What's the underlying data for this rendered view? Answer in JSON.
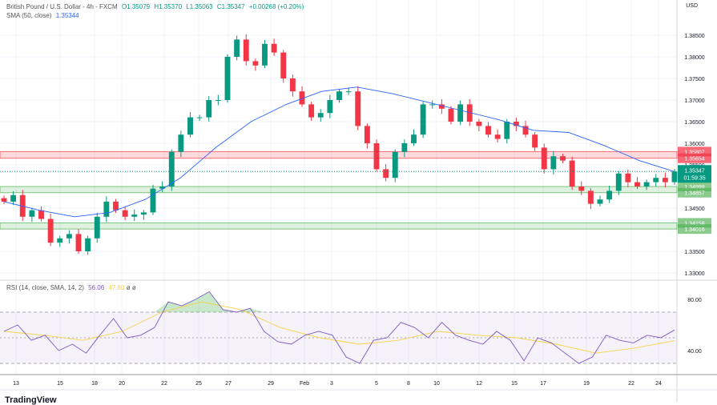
{
  "header": {
    "symbol": "British Pound / U.S. Dollar - 4h - FXCM",
    "open": "O1.35079",
    "high": "H1.35370",
    "low": "L1.35063",
    "close": "C1.35347",
    "change": "+0.00268 (+0.20%)",
    "sma_label": "SMA (50, close)",
    "sma_value": "1.35344",
    "currency": "USD"
  },
  "rsi_header": {
    "label": "RSI (14, close, SMA, 14, 2)",
    "rsi_value": "56.06",
    "sma_value": "47.80",
    "extra1": "ø",
    "extra2": "ø"
  },
  "logo": "TradingView",
  "colors": {
    "up": "#089981",
    "down": "#f23645",
    "sma": "#2962ff",
    "rsi": "#7e57c2",
    "rsi_sma": "#f7d34a"
  },
  "chart_data": [
    {
      "type": "candlestick",
      "title": "British Pound / U.S. Dollar - 4h - FXCM",
      "y_ticks": [
        "1.38500",
        "1.38000",
        "1.37500",
        "1.37000",
        "1.36500",
        "1.36000",
        "1.35500",
        "1.34500",
        "1.33500",
        "1.33000"
      ],
      "ylim": [
        1.3285,
        1.3885
      ],
      "x_ticks": [
        "13",
        "15",
        "18",
        "20",
        "22",
        "25",
        "27",
        "29",
        "Feb",
        "3",
        "5",
        "8",
        "10",
        "12",
        "15",
        "17",
        "19",
        "22",
        "24"
      ],
      "closes": [
        1.3465,
        1.348,
        1.343,
        1.3445,
        1.3425,
        1.337,
        1.338,
        1.339,
        1.335,
        1.338,
        1.343,
        1.3465,
        1.3445,
        1.343,
        1.3435,
        1.344,
        1.3495,
        1.35,
        1.358,
        1.362,
        1.366,
        1.366,
        1.37,
        1.37,
        1.38,
        1.384,
        1.379,
        1.378,
        1.383,
        1.381,
        1.375,
        1.372,
        1.369,
        1.366,
        1.367,
        1.37,
        1.372,
        1.372,
        1.364,
        1.36,
        1.354,
        1.352,
        1.358,
        1.36,
        1.362,
        1.369,
        1.369,
        1.368,
        1.365,
        1.369,
        1.365,
        1.364,
        1.362,
        1.361,
        1.365,
        1.364,
        1.362,
        1.359,
        1.354,
        1.357,
        1.356,
        1.35,
        1.349,
        1.346,
        1.347,
        1.349,
        1.353,
        1.351,
        1.35,
        1.351,
        1.352,
        1.351,
        1.35347
      ],
      "sma": [
        1.3465,
        1.3445,
        1.343,
        1.344,
        1.347,
        1.352,
        1.359,
        1.365,
        1.369,
        1.372,
        1.373,
        1.3715,
        1.3695,
        1.3675,
        1.3655,
        1.363,
        1.3625,
        1.3595,
        1.356,
        1.35344
      ],
      "zones": [
        {
          "type": "resistance",
          "top": "1.35807",
          "bottom": "1.35654",
          "color": "#f23645"
        },
        {
          "type": "support",
          "top": "1.34999",
          "bottom": "1.34857",
          "color": "#4caf50"
        },
        {
          "type": "support",
          "top": "1.34158",
          "bottom": "1.34016",
          "color": "#4caf50"
        }
      ],
      "last_price": "1.35347",
      "countdown": "01:59:35"
    },
    {
      "type": "line",
      "title": "RSI (14, close, SMA, 14, 2)",
      "y_ticks": [
        "80.00",
        "40.00"
      ],
      "levels": [
        70,
        50,
        30
      ],
      "rsi": [
        55,
        60,
        48,
        52,
        40,
        45,
        38,
        52,
        65,
        50,
        52,
        58,
        78,
        75,
        80,
        86,
        72,
        70,
        73,
        55,
        47,
        45,
        52,
        55,
        52,
        35,
        30,
        48,
        50,
        62,
        58,
        50,
        62,
        52,
        48,
        45,
        55,
        48,
        32,
        50,
        46,
        38,
        30,
        35,
        52,
        48,
        46,
        52,
        50,
        56.06
      ],
      "rsi_sma": [
        55,
        52,
        48,
        55,
        70,
        78,
        72,
        58,
        50,
        45,
        48,
        55,
        52,
        50,
        45,
        38,
        42,
        47.8
      ]
    }
  ]
}
